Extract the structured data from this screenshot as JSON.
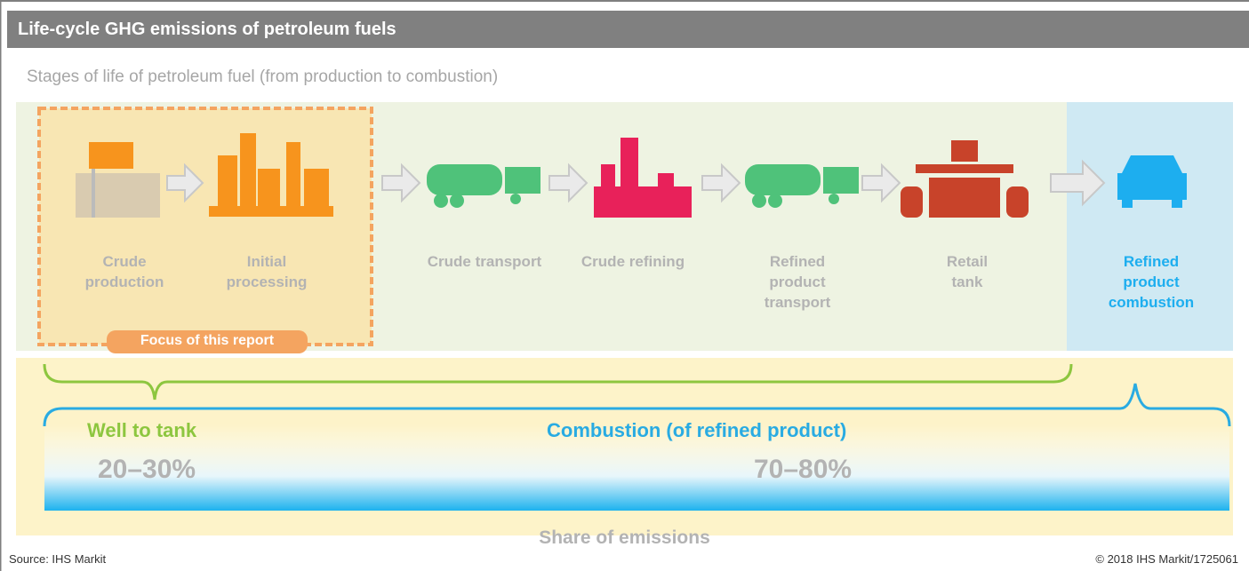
{
  "header": {
    "title": "Life-cycle GHG emissions of petroleum fuels"
  },
  "subtitle": "Stages of life of petroleum fuel (from production to combustion)",
  "stages": [
    {
      "label": "Crude production"
    },
    {
      "label": "Initial processing"
    },
    {
      "label": "Crude transport"
    },
    {
      "label": "Crude refining"
    },
    {
      "label": "Refined product transport"
    },
    {
      "label": "Retail tank"
    },
    {
      "label": "Refined product combustion"
    }
  ],
  "focus": "Focus of this report",
  "segments": [
    {
      "name": "Well to tank",
      "share": "20–30%"
    },
    {
      "name": "Combustion (of refined product)",
      "share": "70–80%"
    }
  ],
  "axis_label": "Share of emissions",
  "footer": {
    "source": "Source: IHS Markit",
    "copyright": "© 2018 IHS Markit/1725061"
  }
}
